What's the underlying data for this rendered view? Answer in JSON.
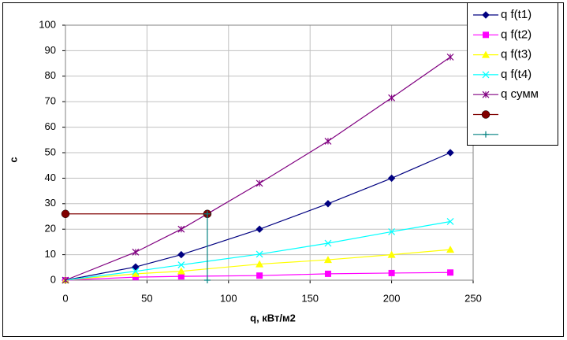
{
  "chart_data": {
    "type": "line",
    "x_label": "q, кВт/м2",
    "y_label": "c",
    "xlim": [
      0,
      250
    ],
    "xticks": [
      0,
      50,
      100,
      150,
      200,
      250
    ],
    "ylim": [
      0,
      100
    ],
    "yticks": [
      0,
      10,
      20,
      30,
      40,
      50,
      60,
      70,
      80,
      90,
      100
    ],
    "grid": true,
    "legend": "top-right",
    "series": [
      {
        "name": "q f(t1)",
        "color": "#000080",
        "marker": "diamond",
        "x": [
          0,
          43,
          71,
          119,
          161,
          200,
          236
        ],
        "values": [
          0,
          5.2,
          10,
          20,
          30,
          40,
          50
        ]
      },
      {
        "name": "q f(t2)",
        "color": "#ff00ff",
        "marker": "square",
        "x": [
          0,
          43,
          71,
          119,
          161,
          200,
          236
        ],
        "values": [
          0,
          1.2,
          1.5,
          1.8,
          2.5,
          2.8,
          3
        ]
      },
      {
        "name": "q f(t3)",
        "color": "#ffff00",
        "marker": "triangle",
        "x": [
          0,
          43,
          71,
          119,
          161,
          200,
          236
        ],
        "values": [
          0,
          2.5,
          3.5,
          6.3,
          8,
          10,
          12
        ]
      },
      {
        "name": "q f(t4)",
        "color": "#00ffff",
        "marker": "cross",
        "x": [
          0,
          43,
          71,
          119,
          161,
          200,
          236
        ],
        "values": [
          0,
          3.5,
          6,
          10.2,
          14.5,
          19,
          23
        ]
      },
      {
        "name": "q сумм",
        "color": "#800080",
        "marker": "star",
        "x": [
          0,
          43,
          71,
          119,
          161,
          200,
          236
        ],
        "values": [
          0,
          11,
          20,
          38,
          54.5,
          71.5,
          87.5
        ]
      },
      {
        "color": "#800000",
        "marker": "circle",
        "x": [
          0,
          87
        ],
        "values": [
          26,
          26
        ]
      },
      {
        "color": "#008080",
        "marker": "plus",
        "x": [
          87,
          87
        ],
        "values": [
          26,
          0
        ]
      }
    ]
  }
}
